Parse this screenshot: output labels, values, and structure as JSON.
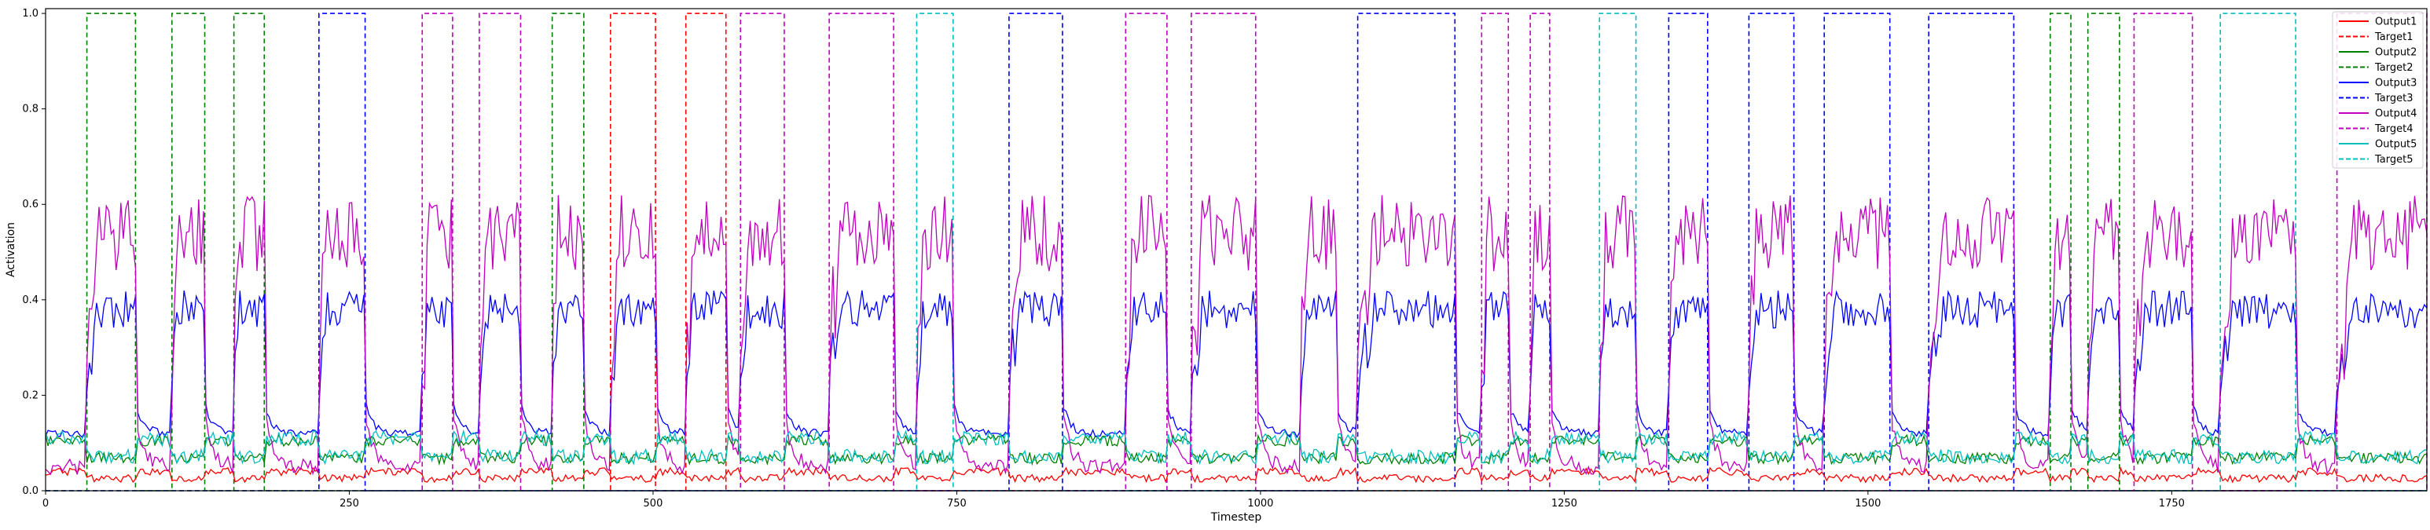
{
  "chart_data": {
    "type": "line",
    "title": "",
    "xlabel": "Timestep",
    "ylabel": "Activation",
    "xlim": [
      0,
      1960
    ],
    "ylim": [
      0,
      1.01
    ],
    "x_ticks": [
      0,
      250,
      500,
      750,
      1000,
      1250,
      1500,
      1750
    ],
    "y_ticks": [
      0.0,
      0.2,
      0.4,
      0.6,
      0.8,
      1.0
    ],
    "x_tick_labels": [
      "0",
      "250",
      "500",
      "750",
      "1000",
      "1250",
      "1500",
      "1750"
    ],
    "y_tick_labels": [
      "0.0",
      "0.2",
      "0.4",
      "0.6",
      "0.8",
      "1.0"
    ],
    "grid": false,
    "legend_position": "top-right",
    "legend": [
      {
        "label": "Output1",
        "color": "#ff0000",
        "dash": false
      },
      {
        "label": "Target1",
        "color": "#ff0000",
        "dash": true
      },
      {
        "label": "Output2",
        "color": "#008000",
        "dash": false
      },
      {
        "label": "Target2",
        "color": "#008000",
        "dash": true
      },
      {
        "label": "Output3",
        "color": "#0000ff",
        "dash": false
      },
      {
        "label": "Target3",
        "color": "#0000ff",
        "dash": true
      },
      {
        "label": "Output4",
        "color": "#bf00bf",
        "dash": false
      },
      {
        "label": "Target4",
        "color": "#bf00bf",
        "dash": true
      },
      {
        "label": "Output5",
        "color": "#00bfbf",
        "dash": false
      },
      {
        "label": "Target5",
        "color": "#00bfbf",
        "dash": true
      }
    ],
    "series": [
      {
        "name": "Target1",
        "color": "#ff0000",
        "dash": true,
        "kind": "pulses",
        "pulses": [
          [
            465,
            502
          ],
          [
            527,
            560
          ]
        ]
      },
      {
        "name": "Target2",
        "color": "#008000",
        "dash": true,
        "kind": "pulses",
        "pulses": [
          [
            34,
            74
          ],
          [
            104,
            131
          ],
          [
            155,
            180
          ],
          [
            417,
            443
          ],
          [
            1650,
            1667
          ],
          [
            1681,
            1707
          ]
        ]
      },
      {
        "name": "Target3",
        "color": "#0000ff",
        "dash": true,
        "kind": "pulses",
        "pulses": [
          [
            225,
            263
          ],
          [
            793,
            837
          ],
          [
            1080,
            1160
          ],
          [
            1336,
            1368
          ],
          [
            1402,
            1439
          ],
          [
            1464,
            1518
          ],
          [
            1550,
            1620
          ]
        ]
      },
      {
        "name": "Target4",
        "color": "#bf00bf",
        "dash": true,
        "kind": "pulses",
        "pulses": [
          [
            310,
            335
          ],
          [
            357,
            391
          ],
          [
            572,
            608
          ],
          [
            645,
            698
          ],
          [
            889,
            923
          ],
          [
            943,
            996
          ],
          [
            1182,
            1204
          ],
          [
            1222,
            1238
          ],
          [
            1719,
            1767
          ],
          [
            1886,
            1960
          ]
        ]
      },
      {
        "name": "Target5",
        "color": "#00bfbf",
        "dash": true,
        "kind": "pulses",
        "pulses": [
          [
            717,
            747
          ],
          [
            1279,
            1309
          ],
          [
            1790,
            1852
          ]
        ]
      },
      {
        "name": "Output1",
        "color": "#ff0000",
        "dash": false,
        "kind": "baseline",
        "base": 0.04,
        "amp": 0.008
      },
      {
        "name": "Output2",
        "color": "#008000",
        "dash": false,
        "kind": "baseline",
        "base": 0.105,
        "amp": 0.012
      },
      {
        "name": "Output3",
        "color": "#0000ff",
        "dash": false,
        "kind": "response",
        "base": 0.12,
        "level": 0.38,
        "amp": 0.04
      },
      {
        "name": "Output4",
        "color": "#bf00bf",
        "dash": false,
        "kind": "response",
        "base": 0.05,
        "level": 0.54,
        "amp": 0.08
      },
      {
        "name": "Output5",
        "color": "#00bfbf",
        "dash": false,
        "kind": "baseline",
        "base": 0.11,
        "amp": 0.015
      }
    ],
    "active_segments": [
      [
        34,
        74
      ],
      [
        104,
        131
      ],
      [
        155,
        180
      ],
      [
        225,
        263
      ],
      [
        310,
        335
      ],
      [
        357,
        391
      ],
      [
        417,
        443
      ],
      [
        465,
        502
      ],
      [
        527,
        560
      ],
      [
        572,
        608
      ],
      [
        645,
        698
      ],
      [
        717,
        747
      ],
      [
        793,
        837
      ],
      [
        889,
        923
      ],
      [
        943,
        996
      ],
      [
        1033,
        1062
      ],
      [
        1080,
        1160
      ],
      [
        1182,
        1204
      ],
      [
        1222,
        1238
      ],
      [
        1279,
        1309
      ],
      [
        1336,
        1368
      ],
      [
        1402,
        1439
      ],
      [
        1464,
        1518
      ],
      [
        1550,
        1620
      ],
      [
        1650,
        1667
      ],
      [
        1681,
        1707
      ],
      [
        1719,
        1767
      ],
      [
        1790,
        1852
      ],
      [
        1886,
        1960
      ]
    ]
  }
}
